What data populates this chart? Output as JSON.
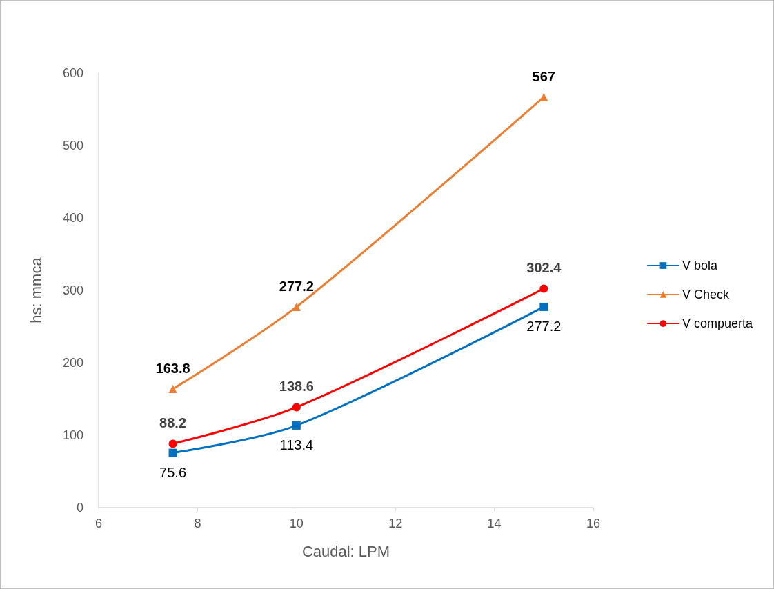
{
  "chart_data": {
    "type": "line",
    "xlabel": "Caudal: LPM",
    "ylabel": "hs: mmca",
    "x": [
      7.5,
      10,
      15
    ],
    "series": [
      {
        "name": "V bola",
        "color": "#0070c0",
        "marker": "square",
        "values": [
          75.6,
          113.4,
          277.2
        ]
      },
      {
        "name": "V Check",
        "color": "#ed7d31",
        "marker": "triangle",
        "values": [
          163.8,
          277.2,
          567
        ]
      },
      {
        "name": "V compuerta",
        "color": "#ff0000",
        "marker": "circle",
        "values": [
          88.2,
          138.6,
          302.4
        ]
      }
    ],
    "xlim": [
      6,
      16
    ],
    "xticks": [
      6,
      8,
      10,
      12,
      14,
      16
    ],
    "ylim": [
      0,
      600
    ],
    "yticks": [
      0,
      100,
      200,
      300,
      400,
      500,
      600
    ],
    "grid": false,
    "legend": "right",
    "data_labels": true
  }
}
